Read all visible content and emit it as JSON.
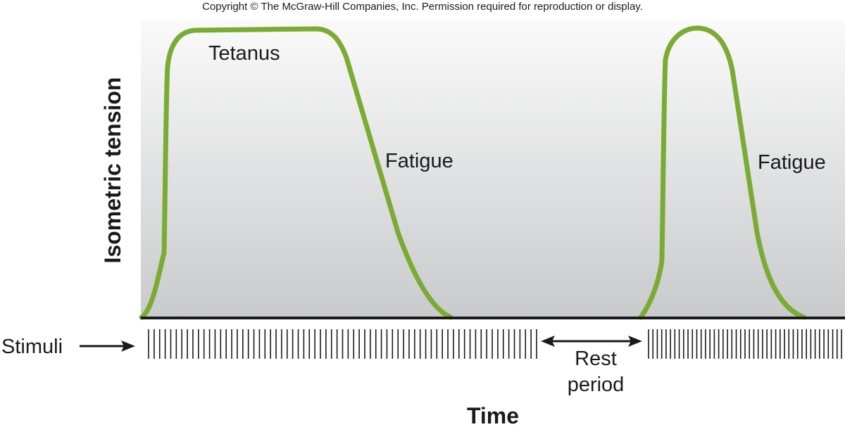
{
  "copyright": "Copyright © The McGraw-Hill Companies, Inc. Permission required for reproduction or display.",
  "y_axis_label": "Isometric tension",
  "x_axis_label": "Time",
  "curve_labels": {
    "tetanus": "Tetanus",
    "fatigue_first": "Fatigue",
    "fatigue_second": "Fatigue"
  },
  "stimuli": {
    "label": "Stimuli",
    "first_burst_count": 71,
    "second_burst_count": 45
  },
  "rest_period": {
    "line1": "Rest",
    "line2": "period"
  },
  "colors": {
    "curve": "#7aab32",
    "background_top": "#fafafa",
    "background_bottom": "#c9cacc",
    "ink": "#1a1a1a"
  }
}
